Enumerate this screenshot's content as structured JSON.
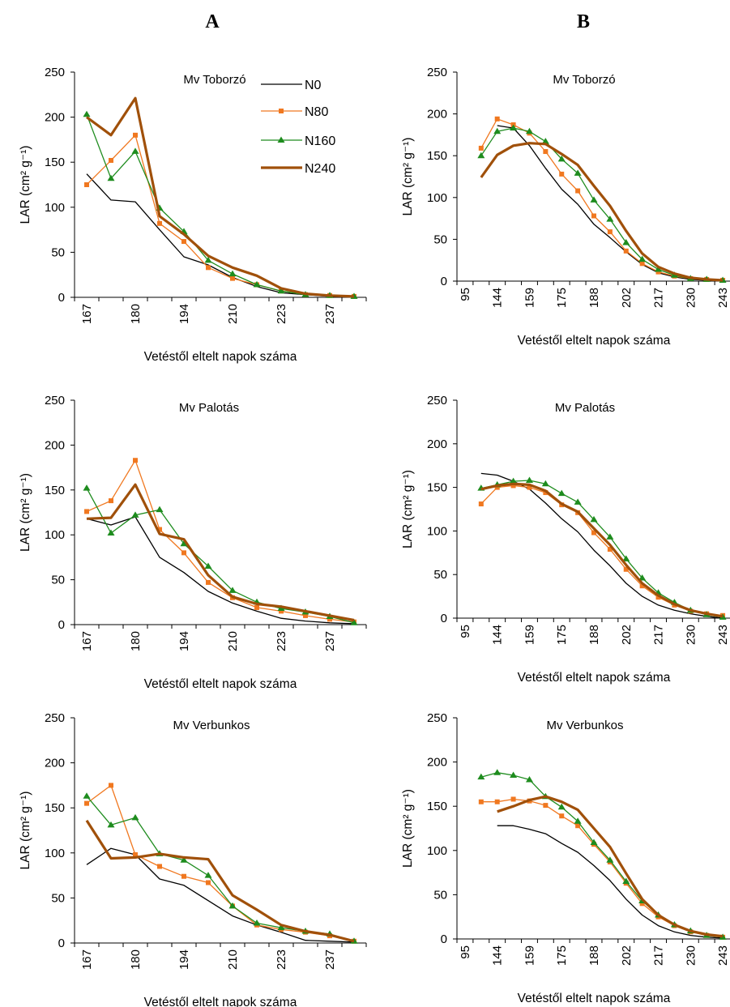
{
  "column_labels": [
    "A",
    "B"
  ],
  "colors": {
    "N0": "#000000",
    "N80": "#f07820",
    "N160": "#1e8c1e",
    "N240": "#a0500a"
  },
  "legend": [
    "N0",
    "N80",
    "N160",
    "N240"
  ],
  "chart_data": [
    {
      "type": "line",
      "column": "A",
      "title": "Mv Toborzó",
      "xlabel": "Vetéstől eltelt napok száma",
      "ylabel": "LAR (cm² g⁻¹)",
      "ylim": [
        0,
        250
      ],
      "yticks": [
        0,
        50,
        100,
        150,
        200,
        250
      ],
      "categories": [
        "167",
        "173",
        "180",
        "187",
        "194",
        "202",
        "210",
        "216",
        "223",
        "230",
        "237",
        "244"
      ],
      "xtick_labels": [
        "167",
        "180",
        "194",
        "210",
        "223",
        "237"
      ],
      "series": [
        {
          "name": "N0",
          "values": [
            137,
            108,
            106,
            75,
            45,
            36,
            22,
            12,
            5,
            3,
            1,
            0
          ]
        },
        {
          "name": "N80",
          "values": [
            125,
            152,
            180,
            82,
            62,
            33,
            21,
            14,
            7,
            3,
            2,
            1
          ]
        },
        {
          "name": "N160",
          "values": [
            203,
            132,
            162,
            99,
            73,
            41,
            26,
            14,
            7,
            3,
            2,
            1
          ]
        },
        {
          "name": "N240",
          "values": [
            200,
            180,
            221,
            90,
            70,
            46,
            33,
            24,
            10,
            4,
            2,
            1
          ]
        }
      ]
    },
    {
      "type": "line",
      "column": "B",
      "title": "Mv Toborzó",
      "xlabel": "Vetéstől eltelt napok száma",
      "ylabel": "LAR (cm² g⁻¹)",
      "ylim": [
        0,
        250
      ],
      "yticks": [
        0,
        50,
        100,
        150,
        200,
        250
      ],
      "categories": [
        "95",
        "138",
        "144",
        "152",
        "159",
        "168",
        "175",
        "182",
        "188",
        "195",
        "202",
        "210",
        "217",
        "224",
        "230",
        "237",
        "243"
      ],
      "xtick_labels": [
        "95",
        "144",
        "159",
        "175",
        "188",
        "202",
        "217",
        "230",
        "243"
      ],
      "series": [
        {
          "name": "N0",
          "values": [
            null,
            null,
            186,
            183,
            162,
            135,
            110,
            92,
            68,
            52,
            35,
            20,
            10,
            5,
            2,
            1,
            0
          ]
        },
        {
          "name": "N80",
          "values": [
            null,
            159,
            194,
            187,
            177,
            155,
            128,
            108,
            78,
            59,
            36,
            21,
            11,
            6,
            3,
            2,
            1
          ]
        },
        {
          "name": "N160",
          "values": [
            null,
            150,
            179,
            183,
            179,
            167,
            146,
            129,
            97,
            74,
            46,
            26,
            14,
            7,
            3,
            2,
            1
          ]
        },
        {
          "name": "N240",
          "values": [
            null,
            124,
            151,
            162,
            165,
            164,
            152,
            139,
            114,
            90,
            60,
            33,
            17,
            9,
            4,
            2,
            1
          ]
        }
      ]
    },
    {
      "type": "line",
      "column": "A",
      "title": "Mv Palotás",
      "xlabel": "Vetéstől eltelt napok száma",
      "ylabel": "LAR (cm² g⁻¹)",
      "ylim": [
        0,
        250
      ],
      "yticks": [
        0,
        50,
        100,
        150,
        200,
        250
      ],
      "categories": [
        "167",
        "173",
        "180",
        "187",
        "194",
        "202",
        "210",
        "216",
        "223",
        "230",
        "237",
        "244"
      ],
      "xtick_labels": [
        "167",
        "180",
        "194",
        "210",
        "223",
        "237"
      ],
      "series": [
        {
          "name": "N0",
          "values": [
            118,
            111,
            120,
            75,
            58,
            37,
            24,
            15,
            7,
            4,
            2,
            1
          ]
        },
        {
          "name": "N80",
          "values": [
            126,
            138,
            183,
            106,
            80,
            47,
            30,
            19,
            15,
            10,
            6,
            3
          ]
        },
        {
          "name": "N160",
          "values": [
            152,
            102,
            122,
            128,
            90,
            65,
            38,
            25,
            18,
            14,
            9,
            2
          ]
        },
        {
          "name": "N240",
          "values": [
            118,
            119,
            156,
            101,
            95,
            55,
            31,
            23,
            20,
            15,
            10,
            5
          ]
        }
      ]
    },
    {
      "type": "line",
      "column": "B",
      "title": "Mv Palotás",
      "xlabel": "Vetéstől eltelt napok száma",
      "ylabel": "LAR (cm² g⁻¹)",
      "ylim": [
        0,
        250
      ],
      "yticks": [
        0,
        50,
        100,
        150,
        200,
        250
      ],
      "categories": [
        "95",
        "138",
        "144",
        "152",
        "159",
        "168",
        "175",
        "182",
        "188",
        "195",
        "202",
        "210",
        "217",
        "224",
        "230",
        "237",
        "243"
      ],
      "xtick_labels": [
        "95",
        "144",
        "159",
        "175",
        "188",
        "202",
        "217",
        "230",
        "243"
      ],
      "series": [
        {
          "name": "N0",
          "values": [
            null,
            166,
            164,
            157,
            148,
            132,
            114,
            99,
            78,
            60,
            40,
            25,
            15,
            9,
            5,
            2,
            0
          ]
        },
        {
          "name": "N80",
          "values": [
            null,
            131,
            150,
            152,
            150,
            144,
            130,
            121,
            98,
            79,
            56,
            37,
            24,
            15,
            8,
            5,
            3
          ]
        },
        {
          "name": "N160",
          "values": [
            null,
            149,
            153,
            157,
            158,
            154,
            143,
            133,
            113,
            93,
            68,
            46,
            29,
            18,
            9,
            4,
            1
          ]
        },
        {
          "name": "N240",
          "values": [
            null,
            148,
            152,
            154,
            153,
            146,
            131,
            122,
            103,
            84,
            61,
            40,
            26,
            16,
            9,
            5,
            2
          ]
        }
      ]
    },
    {
      "type": "line",
      "column": "A",
      "title": "Mv Verbunkos",
      "xlabel": "Vetéstől eltelt napok száma",
      "ylabel": "LAR (cm² g⁻¹)",
      "ylim": [
        0,
        250
      ],
      "yticks": [
        0,
        50,
        100,
        150,
        200,
        250
      ],
      "categories": [
        "167",
        "173",
        "180",
        "187",
        "194",
        "202",
        "210",
        "216",
        "223",
        "230",
        "237",
        "244"
      ],
      "xtick_labels": [
        "167",
        "180",
        "194",
        "210",
        "223",
        "237"
      ],
      "series": [
        {
          "name": "N0",
          "values": [
            87,
            105,
            98,
            71,
            64,
            47,
            30,
            20,
            12,
            3,
            2,
            1
          ]
        },
        {
          "name": "N80",
          "values": [
            155,
            175,
            98,
            85,
            74,
            67,
            41,
            20,
            15,
            12,
            8,
            2
          ]
        },
        {
          "name": "N160",
          "values": [
            163,
            131,
            139,
            99,
            92,
            75,
            41,
            22,
            17,
            13,
            10,
            2
          ]
        },
        {
          "name": "N240",
          "values": [
            136,
            94,
            95,
            99,
            95,
            93,
            53,
            37,
            20,
            13,
            9,
            2
          ]
        }
      ]
    },
    {
      "type": "line",
      "column": "B",
      "title": "Mv Verbunkos",
      "xlabel": "Vetéstől eltelt napok száma",
      "ylabel": "LAR (cm² g⁻¹)",
      "ylim": [
        0,
        250
      ],
      "yticks": [
        0,
        50,
        100,
        150,
        200,
        250
      ],
      "categories": [
        "95",
        "138",
        "144",
        "152",
        "159",
        "168",
        "175",
        "182",
        "188",
        "195",
        "202",
        "210",
        "217",
        "224",
        "230",
        "237",
        "243"
      ],
      "xtick_labels": [
        "95",
        "144",
        "159",
        "175",
        "188",
        "202",
        "217",
        "230",
        "243"
      ],
      "series": [
        {
          "name": "N0",
          "values": [
            null,
            null,
            128,
            128,
            124,
            119,
            108,
            98,
            83,
            66,
            45,
            27,
            15,
            8,
            4,
            2,
            1
          ]
        },
        {
          "name": "N80",
          "values": [
            null,
            155,
            155,
            158,
            156,
            151,
            139,
            128,
            107,
            87,
            63,
            40,
            25,
            15,
            8,
            4,
            2
          ]
        },
        {
          "name": "N160",
          "values": [
            null,
            183,
            188,
            185,
            180,
            161,
            149,
            133,
            109,
            89,
            65,
            43,
            27,
            16,
            9,
            4,
            2
          ]
        },
        {
          "name": "N240",
          "values": [
            null,
            null,
            144,
            150,
            157,
            161,
            155,
            146,
            125,
            104,
            74,
            45,
            27,
            16,
            9,
            5,
            3
          ]
        }
      ]
    }
  ]
}
